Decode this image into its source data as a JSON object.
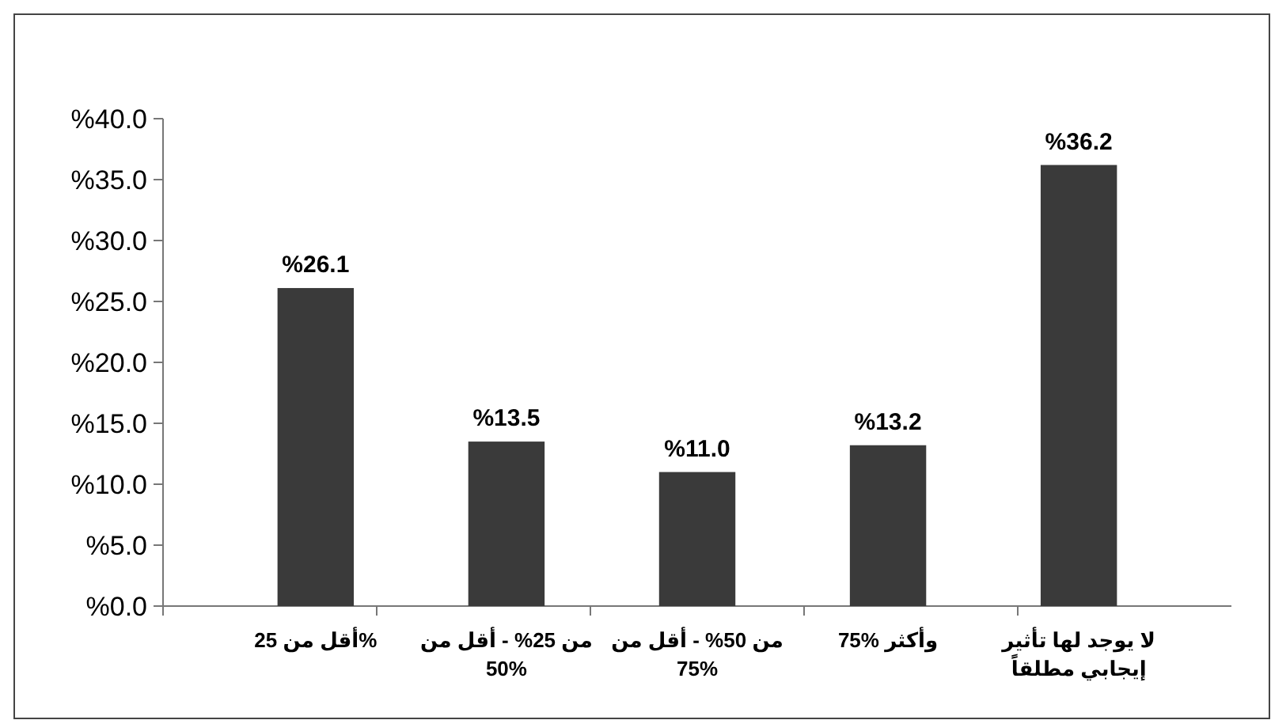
{
  "chart_data": {
    "type": "bar",
    "categories": [
      "أقل من 25%",
      "من 25% - أقل من 50%",
      "من 50% - أقل من 75%",
      "75% وأكثر",
      "لا يوجد لها تأثير إيجابي مطلقاً"
    ],
    "values": [
      26.1,
      13.5,
      11.0,
      13.2,
      36.2
    ],
    "value_labels": [
      "%26.1",
      "%13.5",
      "%11.0",
      "%13.2",
      "%36.2"
    ],
    "color": "#3a3a3a",
    "ylim": [
      0,
      40
    ],
    "yticks": [
      {
        "value": 0,
        "label": "%0.0"
      },
      {
        "value": 5,
        "label": "%5.0"
      },
      {
        "value": 10,
        "label": "%10.0"
      },
      {
        "value": 15,
        "label": "%15.0"
      },
      {
        "value": 20,
        "label": "%20.0"
      },
      {
        "value": 25,
        "label": "%25.0"
      },
      {
        "value": 30,
        "label": "%30.0"
      },
      {
        "value": 35,
        "label": "%35.0"
      },
      {
        "value": 40,
        "label": "%40.0"
      }
    ],
    "grid": false
  }
}
